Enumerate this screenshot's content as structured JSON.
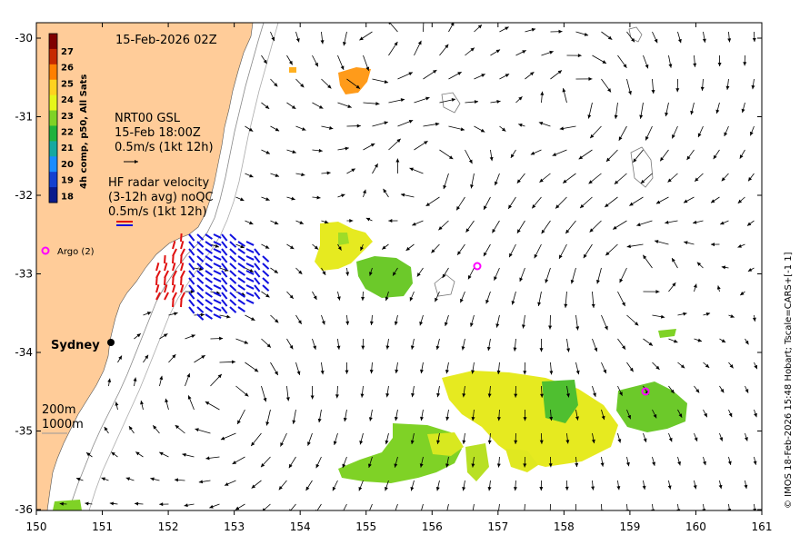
{
  "map": {
    "title_datetime": "15-Feb-2026 02Z",
    "x_ticks": [
      "150",
      "151",
      "152",
      "153",
      "154",
      "155",
      "156",
      "157",
      "158",
      "159",
      "160",
      "161"
    ],
    "y_ticks": [
      "-30",
      "-31",
      "-32",
      "-33",
      "-34",
      "-35",
      "-36"
    ],
    "lon_range": [
      150,
      161
    ],
    "lat_range": [
      -36,
      -29.85
    ],
    "credit": "© IMOS 18-Feb-2026 15:48 Hobart; Tscale=CARS+[-1 1]",
    "colorbar": {
      "label": "4h comp, p50, All Sats",
      "ticks": [
        "27",
        "26",
        "25",
        "24",
        "23",
        "22",
        "21",
        "20",
        "19",
        "18"
      ],
      "colors": [
        "#7f0000",
        "#c62a00",
        "#ff7f00",
        "#ffd21f",
        "#e6f51a",
        "#7fd226",
        "#1fb23c",
        "#16a8a0",
        "#1a8cff",
        "#1440d0",
        "#0a1a8c"
      ]
    },
    "legend": {
      "gsl_title": "NRT00 GSL",
      "gsl_time": "15-Feb 18:00Z",
      "gsl_scale": "0.5m/s (1kt 12h)",
      "radar_title": "HF radar velocity",
      "radar_sub": "(3-12h avg) noQC",
      "radar_scale": "0.5m/s (1kt 12h)",
      "argo": "Argo (2)",
      "depth_200": "200m",
      "depth_1000": "1000m"
    },
    "place_label": "Sydney",
    "colors": {
      "land": "#ffcc99",
      "argo": "#ff00ff",
      "radar_east": "#1010e0",
      "radar_west": "#e01010"
    }
  }
}
